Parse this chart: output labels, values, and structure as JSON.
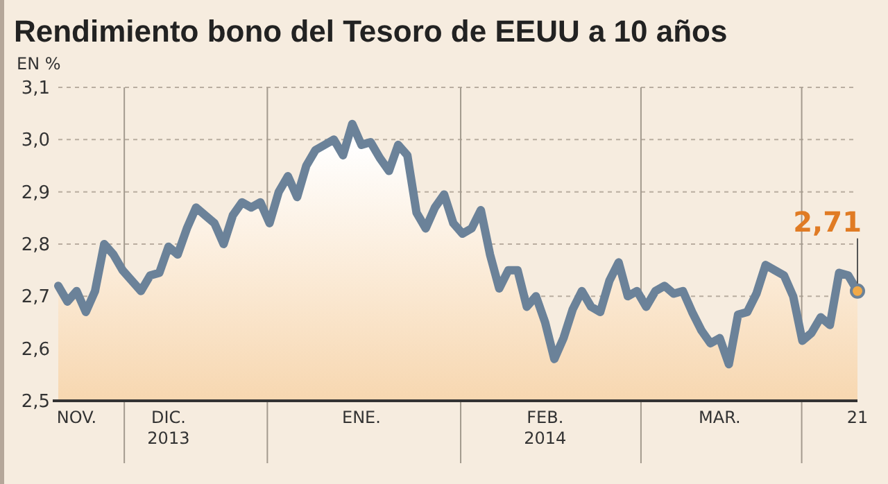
{
  "chart_data": {
    "type": "area",
    "title": "Rendimiento bono del Tesoro de EEUU a 10 años",
    "ylabel": "EN %",
    "categories": [
      null,
      null,
      "NOV.",
      null,
      null,
      null,
      null,
      null,
      null,
      null,
      null,
      null,
      "DIC.\n2013",
      null,
      null,
      null,
      null,
      null,
      null,
      null,
      null,
      null,
      null,
      null,
      null,
      null,
      null,
      null,
      null,
      null,
      null,
      null,
      null,
      "ENE.",
      null,
      null,
      null,
      null,
      null,
      null,
      null,
      null,
      null,
      null,
      null,
      null,
      null,
      null,
      null,
      null,
      null,
      null,
      null,
      "FEB.\n2014",
      null,
      null,
      null,
      null,
      null,
      null,
      null,
      null,
      null,
      null,
      null,
      null,
      null,
      null,
      null,
      null,
      null,
      null,
      "MAR.",
      null,
      null,
      null,
      null,
      null,
      null,
      null,
      null,
      null,
      null,
      null,
      null,
      null,
      null,
      "21"
    ],
    "series": [
      {
        "color": "#6b8299",
        "values": [
          2.72,
          2.69,
          2.71,
          2.67,
          2.71,
          2.8,
          2.78,
          2.75,
          2.73,
          2.71,
          2.74,
          2.745,
          2.795,
          2.78,
          2.83,
          2.87,
          2.855,
          2.84,
          2.8,
          2.855,
          2.88,
          2.87,
          2.88,
          2.84,
          2.9,
          2.93,
          2.89,
          2.95,
          2.98,
          2.99,
          3.0,
          2.97,
          3.03,
          2.99,
          2.995,
          2.965,
          2.94,
          2.99,
          2.97,
          2.86,
          2.83,
          2.87,
          2.895,
          2.84,
          2.82,
          2.83,
          2.865,
          2.78,
          2.715,
          2.75,
          2.75,
          2.68,
          2.7,
          2.65,
          2.58,
          2.62,
          2.675,
          2.71,
          2.68,
          2.67,
          2.73,
          2.765,
          2.7,
          2.71,
          2.68,
          2.71,
          2.72,
          2.705,
          2.71,
          2.67,
          2.635,
          2.61,
          2.62,
          2.57,
          2.665,
          2.67,
          2.705,
          2.76,
          2.75,
          2.74,
          2.7,
          2.615,
          2.63,
          2.66,
          2.645,
          2.745,
          2.74,
          2.71
        ]
      }
    ],
    "ylim": [
      2.5,
      3.1
    ],
    "yticks": [
      {
        "value": 2.5,
        "label": "2,5"
      },
      {
        "value": 2.6,
        "label": "2,6"
      },
      {
        "value": 2.7,
        "label": "2,7"
      },
      {
        "value": 2.8,
        "label": "2,8"
      },
      {
        "value": 2.9,
        "label": "2,9"
      },
      {
        "value": 3.0,
        "label": "3,0"
      },
      {
        "value": 3.1,
        "label": "3,1"
      }
    ],
    "grid": "y",
    "annotations": [
      {
        "text": "2,71",
        "x": "21",
        "y": 2.71
      }
    ]
  }
}
